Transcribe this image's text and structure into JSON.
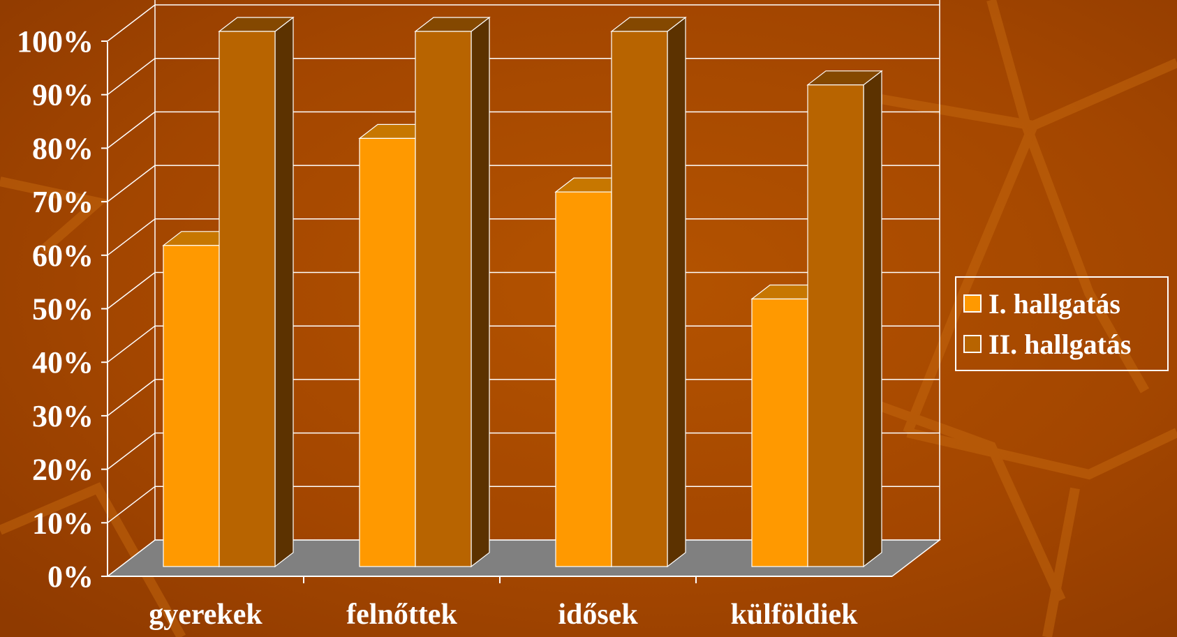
{
  "chart_data": {
    "type": "bar",
    "title": "",
    "xlabel": "",
    "ylabel": "",
    "categories": [
      "gyerekek",
      "felnőttek",
      "idősek",
      "külföldiek"
    ],
    "series": [
      {
        "name": "I. hallgatás",
        "values": [
          60,
          80,
          70,
          50
        ],
        "color": "#ff9900"
      },
      {
        "name": "II. hallgatás",
        "values": [
          100,
          100,
          100,
          90
        ],
        "color": "#b86400"
      }
    ],
    "ylim": [
      0,
      100
    ],
    "yticks": [
      "0%",
      "10%",
      "20%",
      "30%",
      "40%",
      "50%",
      "60%",
      "70%",
      "80%",
      "90%",
      "100%"
    ],
    "grid": true,
    "legend_position": "right",
    "three_d": true
  },
  "colors": {
    "background": "#a84a00",
    "floor": "#808080",
    "gridline": "#ffffff",
    "text": "#ffffff"
  }
}
